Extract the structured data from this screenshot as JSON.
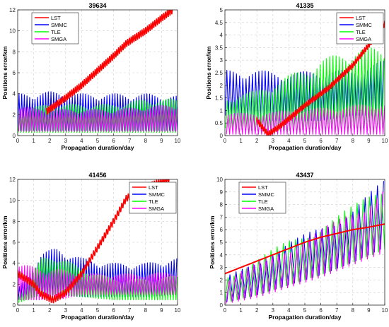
{
  "figure": {
    "series_colors": {
      "LST": "#ff0000",
      "SMMC": "#0000ff",
      "TLE": "#00ff00",
      "SMGA": "#ff00ff"
    }
  },
  "chart_data": [
    {
      "type": "line",
      "title": "39634",
      "xlabel": "Propagation duration/day",
      "ylabel": "Positions error/km",
      "xlim": [
        0,
        10
      ],
      "ylim": [
        0,
        12
      ],
      "xticks": [
        "0",
        "1",
        "2",
        "3",
        "4",
        "5",
        "6",
        "7",
        "8",
        "9",
        "10"
      ],
      "yticks": [
        "0",
        "2",
        "4",
        "6",
        "8",
        "10",
        "12"
      ],
      "grid": true,
      "legend_position": "top-left",
      "series": [
        {
          "name": "LST",
          "color": "#ff0000",
          "kind": "band",
          "x": [
            1.8,
            3,
            4,
            5,
            6,
            6.8,
            8,
            9,
            9.7
          ],
          "y": [
            2.3,
            3.6,
            4.8,
            6.2,
            7.6,
            8.8,
            10,
            11.2,
            12
          ],
          "spread": 0.35
        },
        {
          "name": "SMMC",
          "color": "#0000ff",
          "kind": "oscillation",
          "x": [
            0,
            2,
            4,
            6,
            8,
            10
          ],
          "lower": [
            0.5,
            0.5,
            0.5,
            0.5,
            0.5,
            0.5
          ],
          "upper": [
            4.0,
            4.2,
            4.0,
            4.0,
            4.0,
            3.8
          ],
          "cycles": 60
        },
        {
          "name": "TLE",
          "color": "#00ff00",
          "kind": "oscillation",
          "x": [
            0,
            2,
            4,
            6,
            8,
            10
          ],
          "lower": [
            0.3,
            0.3,
            0.3,
            0.3,
            0.3,
            0.3
          ],
          "upper": [
            2.5,
            3.0,
            3.0,
            3.0,
            3.5,
            3.5
          ],
          "cycles": 60
        },
        {
          "name": "SMGA",
          "color": "#ff00ff",
          "kind": "oscillation",
          "x": [
            0,
            2,
            4,
            6,
            8,
            10
          ],
          "lower": [
            0.4,
            0.4,
            0.4,
            0.4,
            0.4,
            0.4
          ],
          "upper": [
            2.8,
            2.5,
            2.5,
            2.5,
            2.8,
            3.0
          ],
          "cycles": 60
        }
      ]
    },
    {
      "type": "line",
      "title": "41335",
      "xlabel": "Propagation duration/day",
      "ylabel": "Positions error/km",
      "xlim": [
        0,
        10
      ],
      "ylim": [
        0,
        5
      ],
      "xticks": [
        "0",
        "1",
        "2",
        "3",
        "4",
        "5",
        "6",
        "7",
        "8",
        "9",
        "10"
      ],
      "yticks": [
        "0",
        "0.5",
        "1",
        "1.5",
        "2",
        "2.5",
        "3",
        "3.5",
        "4",
        "4.5",
        "5"
      ],
      "grid": true,
      "legend_position": "top-right",
      "series": [
        {
          "name": "LST",
          "color": "#ff0000",
          "kind": "band",
          "x": [
            2.0,
            2.7,
            3.5,
            5,
            6.5,
            8,
            9,
            10
          ],
          "y": [
            0.6,
            0.05,
            0.4,
            1.2,
            1.9,
            2.8,
            3.6,
            4.45
          ],
          "spread": 0.12
        },
        {
          "name": "SMMC",
          "color": "#0000ff",
          "kind": "oscillation",
          "x": [
            0,
            2,
            4,
            6,
            8,
            10
          ],
          "lower": [
            0.8,
            0.6,
            0.6,
            0.6,
            0.8,
            0.8
          ],
          "upper": [
            2.6,
            2.6,
            2.5,
            2.6,
            2.6,
            3.0
          ],
          "cycles": 50
        },
        {
          "name": "TLE",
          "color": "#00ff00",
          "kind": "oscillation",
          "x": [
            0,
            2,
            4,
            6,
            8,
            10
          ],
          "lower": [
            0.3,
            0.2,
            0.2,
            0.3,
            0.3,
            0.3
          ],
          "upper": [
            1.5,
            1.8,
            2.4,
            3.0,
            3.5,
            3.5
          ],
          "cycles": 50
        },
        {
          "name": "SMGA",
          "color": "#ff00ff",
          "kind": "oscillation",
          "x": [
            0,
            2,
            4,
            6,
            8,
            10
          ],
          "lower": [
            0.05,
            0.05,
            0.05,
            0.05,
            0.05,
            0.05
          ],
          "upper": [
            0.9,
            0.9,
            1.0,
            1.1,
            1.2,
            1.3
          ],
          "cycles": 50
        }
      ]
    },
    {
      "type": "line",
      "title": "41456",
      "xlabel": "Propagation duration/day",
      "ylabel": "Positions error/km",
      "xlim": [
        0,
        10
      ],
      "ylim": [
        0,
        12
      ],
      "xticks": [
        "0",
        "1",
        "2",
        "3",
        "4",
        "5",
        "6",
        "7",
        "8",
        "9",
        "10"
      ],
      "yticks": [
        "0",
        "2",
        "4",
        "6",
        "8",
        "10",
        "12"
      ],
      "grid": true,
      "legend_position": "top-right",
      "series": [
        {
          "name": "LST",
          "color": "#ff0000",
          "kind": "band",
          "x": [
            0,
            1,
            1.5,
            2.2,
            3,
            4,
            5,
            6,
            6.8,
            8,
            9,
            9.5
          ],
          "y": [
            3.0,
            2.0,
            1.0,
            0.5,
            1.2,
            3.0,
            5.5,
            8.0,
            10.2,
            11.2,
            11.8,
            12
          ],
          "spread": 0.35
        },
        {
          "name": "SMMC",
          "color": "#0000ff",
          "kind": "oscillation",
          "x": [
            0,
            1.5,
            2.5,
            4,
            6,
            8,
            10
          ],
          "lower": [
            0.5,
            1.0,
            1.0,
            0.8,
            0.8,
            0.8,
            1.0
          ],
          "upper": [
            1.5,
            5.0,
            5.5,
            4.5,
            4.0,
            4.0,
            4.5
          ],
          "cycles": 60
        },
        {
          "name": "TLE",
          "color": "#00ff00",
          "kind": "oscillation",
          "x": [
            0,
            1.5,
            2.5,
            4,
            6,
            8,
            10
          ],
          "lower": [
            0.2,
            1.0,
            1.0,
            0.8,
            0.5,
            0.5,
            0.5
          ],
          "upper": [
            0.8,
            4.5,
            4.8,
            3.5,
            2.5,
            2.5,
            2.8
          ],
          "cycles": 60
        },
        {
          "name": "SMGA",
          "color": "#ff00ff",
          "kind": "oscillation",
          "x": [
            0,
            1.5,
            2.5,
            4,
            6,
            8,
            10
          ],
          "lower": [
            0.5,
            0.5,
            0.5,
            1.0,
            1.0,
            1.0,
            1.0
          ],
          "upper": [
            4.0,
            3.5,
            3.5,
            3.0,
            3.0,
            3.0,
            3.2
          ],
          "cycles": 60
        }
      ]
    },
    {
      "type": "line",
      "title": "43437",
      "xlabel": "Propagation duration/day",
      "ylabel": "Positions error/km",
      "xlim": [
        0,
        10
      ],
      "ylim": [
        0,
        10
      ],
      "xticks": [
        "0",
        "1",
        "2",
        "3",
        "4",
        "5",
        "6",
        "7",
        "8",
        "9",
        "10"
      ],
      "yticks": [
        "0",
        "1",
        "2",
        "3",
        "4",
        "5",
        "6",
        "7",
        "8",
        "9",
        "10"
      ],
      "grid": true,
      "legend_position": "top-left",
      "series": [
        {
          "name": "LST",
          "color": "#ff0000",
          "kind": "line",
          "x": [
            0,
            1,
            2,
            3,
            4,
            5,
            6,
            7,
            8,
            9,
            10
          ],
          "y": [
            2.5,
            3.0,
            3.5,
            4.0,
            4.5,
            5.0,
            5.4,
            5.7,
            6.0,
            6.2,
            6.45
          ]
        },
        {
          "name": "SMMC",
          "color": "#0000ff",
          "kind": "oscillation",
          "x": [
            0,
            2,
            4,
            6,
            8,
            10
          ],
          "lower": [
            0.2,
            0.8,
            1.6,
            2.4,
            3.4,
            4.6
          ],
          "upper": [
            2.2,
            3.6,
            5.0,
            6.3,
            7.8,
            10.0
          ],
          "cycles": 26
        },
        {
          "name": "TLE",
          "color": "#00ff00",
          "kind": "oscillation",
          "x": [
            0,
            2,
            4,
            6,
            8,
            10
          ],
          "lower": [
            0.2,
            0.8,
            1.6,
            2.4,
            3.4,
            4.4
          ],
          "upper": [
            2.3,
            3.7,
            5.2,
            6.4,
            7.9,
            9.8
          ],
          "cycles": 26
        },
        {
          "name": "SMGA",
          "color": "#ff00ff",
          "kind": "oscillation",
          "x": [
            0,
            2,
            4,
            6,
            8,
            10
          ],
          "lower": [
            0.1,
            0.6,
            1.4,
            2.2,
            3.2,
            4.2
          ],
          "upper": [
            2.0,
            3.4,
            4.8,
            6.0,
            7.6,
            9.5
          ],
          "cycles": 26
        }
      ]
    }
  ]
}
